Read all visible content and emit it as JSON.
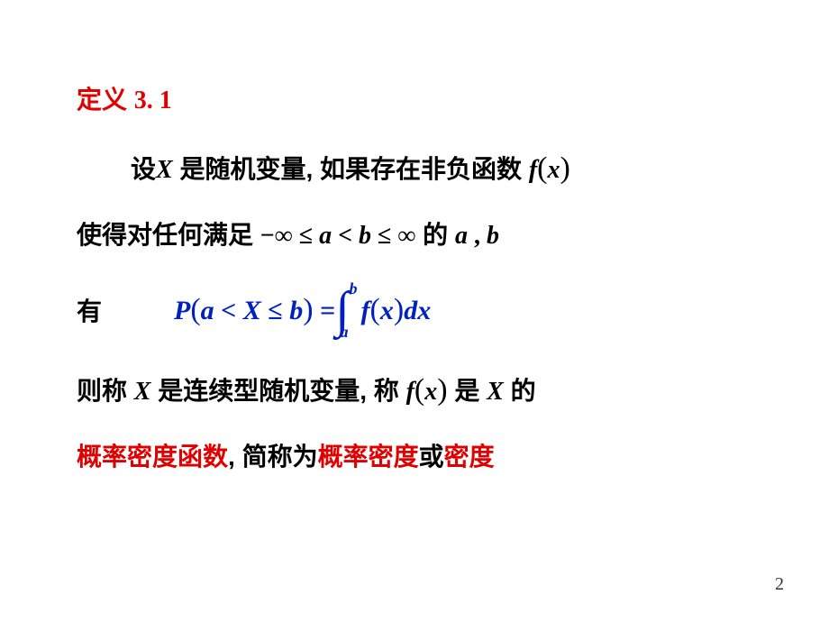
{
  "title": {
    "label": "定义",
    "number": "3. 1"
  },
  "line1": {
    "prefix": "设",
    "var_X": "X",
    "mid": " 是随机变量, 如果存在非负函数 ",
    "fx_f": "f",
    "fx_lp": "(",
    "fx_x": "x",
    "fx_rp": ")"
  },
  "line2": {
    "prefix": "使得对任何满足 ",
    "cond_neg_inf": "−∞",
    "cond_le1": " ≤ ",
    "cond_a": "a",
    "cond_lt": " < ",
    "cond_b": "b",
    "cond_le2": " ≤ ",
    "cond_inf": "∞",
    "mid": " 的  ",
    "ab_a": "a",
    "ab_comma": " , ",
    "ab_b": "b"
  },
  "line3": {
    "you": "有",
    "P": "P",
    "lp1": "(",
    "a": "a",
    "lt": " < ",
    "X": "X",
    "le": " ≤ ",
    "b": "b",
    "rp1": ")",
    "eq": " = ",
    "int_upper": "b",
    "int_lower": "a",
    "f": "f",
    "lp2": "(",
    "x": "x",
    "rp2": ")",
    "dx": "dx"
  },
  "line4": {
    "prefix": "则称  ",
    "X1": "X",
    "mid1": " 是连续型随机变量, 称   ",
    "f": "f",
    "lp": "(",
    "x": "x",
    "rp": ")",
    "mid2": "  是  ",
    "X2": "X",
    "suffix": " 的"
  },
  "line5": {
    "red1": "概率密度函数",
    "black1": ", 简称为",
    "red2": "概率密度",
    "black2": "或",
    "red3": "密度"
  },
  "pageNumber": "2"
}
